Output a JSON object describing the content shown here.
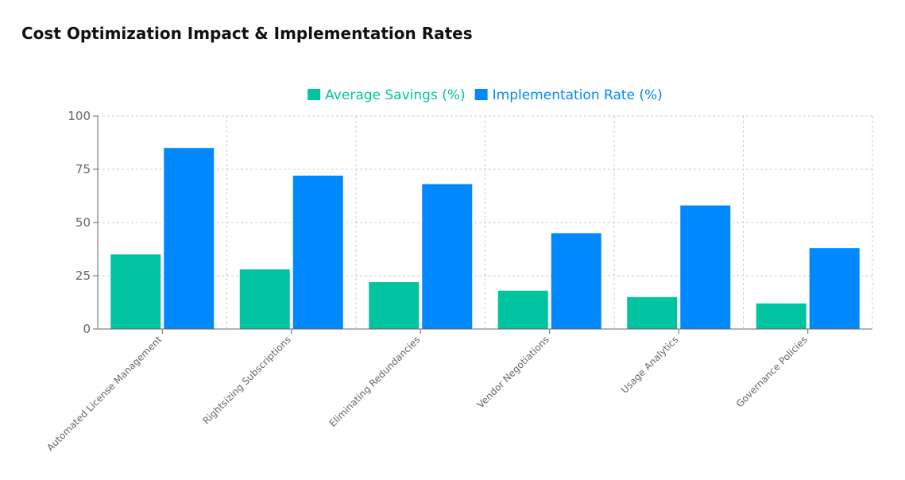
{
  "chart_data": {
    "type": "bar",
    "title": "Cost Optimization Impact & Implementation Rates",
    "categories": [
      "Automated License Management",
      "Rightsizing Subscriptions",
      "Eliminating Redundancies",
      "Vendor Negotiations",
      "Usage Analytics",
      "Governance Policies"
    ],
    "series": [
      {
        "name": "Average Savings (%)",
        "values": [
          35,
          28,
          22,
          18,
          15,
          12
        ],
        "color": "#00c49f"
      },
      {
        "name": "Implementation Rate (%)",
        "values": [
          85,
          72,
          68,
          45,
          58,
          38
        ],
        "color": "#0088fe"
      }
    ],
    "ylim": [
      0,
      100
    ],
    "yticks": [
      0,
      25,
      50,
      75,
      100
    ],
    "grid": true,
    "legend_position": "top"
  }
}
